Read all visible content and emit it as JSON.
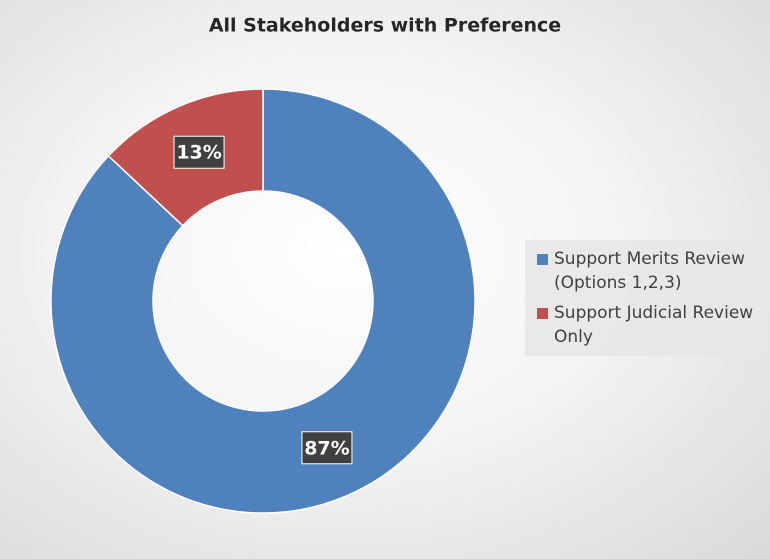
{
  "chart_data": {
    "type": "donut",
    "title": "All Stakeholders with Preference",
    "categories": [
      "Support Merits Review (Options 1,2,3)",
      "Support Judicial Review Only"
    ],
    "values": [
      87,
      13
    ],
    "value_labels": [
      "87%",
      "13%"
    ],
    "colors": [
      "#4f81bd",
      "#c0504d"
    ],
    "legend": "right"
  }
}
